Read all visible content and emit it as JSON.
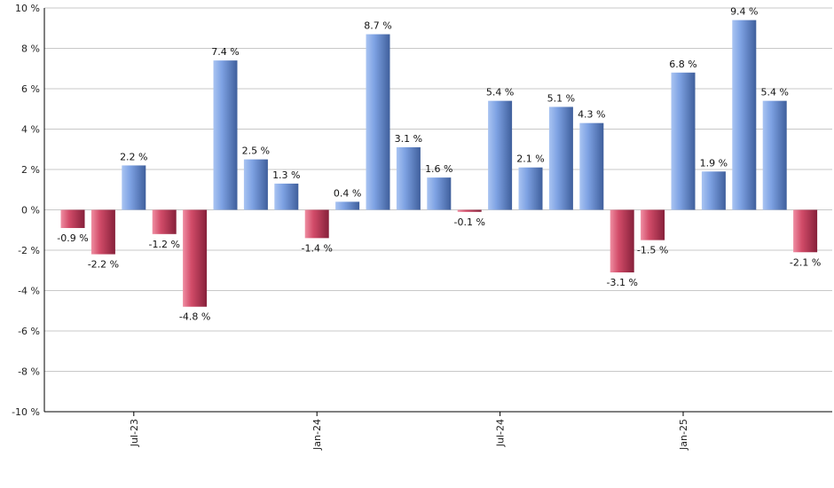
{
  "chart_data": {
    "type": "bar",
    "title": "",
    "xlabel": "",
    "ylabel": "",
    "ylim": [
      -10,
      10
    ],
    "y_ticks": [
      10,
      8,
      6,
      4,
      2,
      0,
      -2,
      -4,
      -6,
      -8,
      -10
    ],
    "y_tick_suffix": " %",
    "grid": true,
    "legend": "none",
    "colors": {
      "positive": "#6f95d6",
      "negative": "#c73a5a",
      "grid": "#c8c8c8",
      "axis": "#000000"
    },
    "x_axis_labels": [
      {
        "label": "Jul-23",
        "at_index": 2
      },
      {
        "label": "Jan-24",
        "at_index": 8
      },
      {
        "label": "Jul-24",
        "at_index": 14
      },
      {
        "label": "Jan-25",
        "at_index": 20
      }
    ],
    "values": [
      -0.9,
      -2.2,
      2.2,
      -1.2,
      -4.8,
      7.4,
      2.5,
      1.3,
      -1.4,
      0.4,
      8.7,
      3.1,
      1.6,
      -0.1,
      5.4,
      2.1,
      5.1,
      4.3,
      -3.1,
      -1.5,
      6.8,
      1.9,
      9.4,
      5.4,
      -2.1
    ],
    "labels": [
      "-0.9 %",
      "-2.2 %",
      "2.2 %",
      "-1.2 %",
      "-4.8 %",
      "7.4 %",
      "2.5 %",
      "1.3 %",
      "-1.4 %",
      "0.4 %",
      "8.7 %",
      "3.1 %",
      "1.6 %",
      "-0.1 %",
      "5.4 %",
      "2.1 %",
      "5.1 %",
      "4.3 %",
      "-3.1 %",
      "-1.5 %",
      "6.8 %",
      "1.9 %",
      "9.4 %",
      "5.4 %",
      "-2.1 %"
    ]
  }
}
